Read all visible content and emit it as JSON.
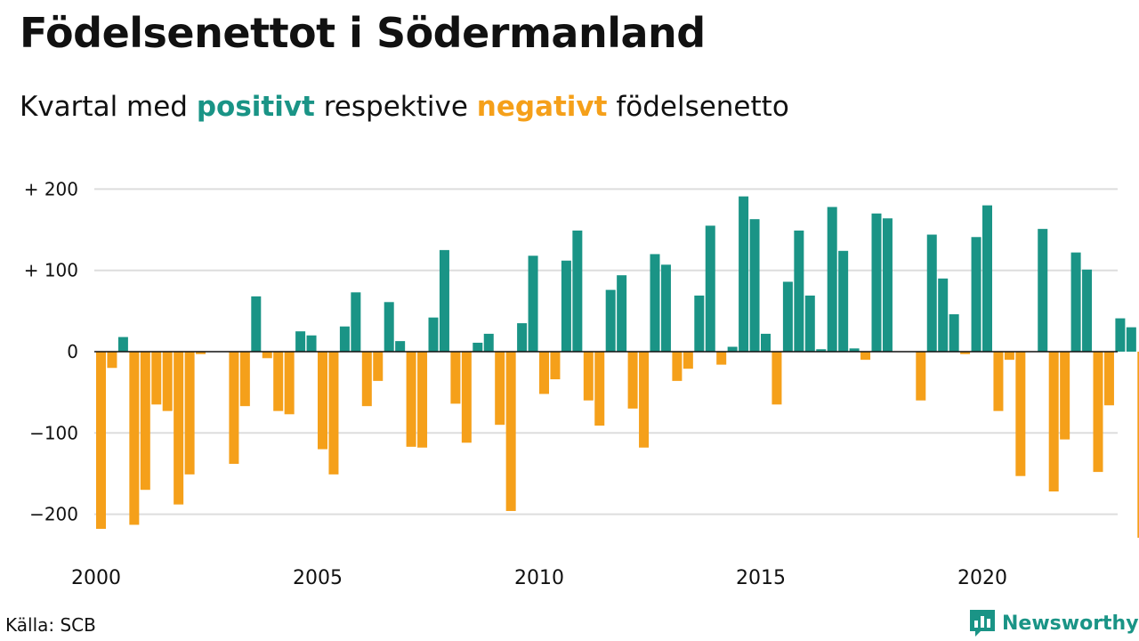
{
  "title": "Födelsenettot i Södermanland",
  "subtitle": {
    "prefix": "Kvartal med ",
    "positive_word": "positivt",
    "middle": " respektive ",
    "negative_word": "negativt",
    "suffix": " födelsenetto"
  },
  "source": "Källa: SCB",
  "logo": {
    "name": "newsworthy-logo-icon",
    "text": "Newsworthy"
  },
  "colors": {
    "positive": "#1a9486",
    "negative": "#f5a01a",
    "grid": "#dddddd",
    "axis": "#111111"
  },
  "chart_data": {
    "type": "bar",
    "title": "Födelsenettot i Södermanland",
    "x_start": "2000 Q1",
    "x_ticks": [
      2000,
      2005,
      2010,
      2015,
      2020
    ],
    "y_ticks": [
      -200,
      -100,
      0,
      100,
      200
    ],
    "y_tick_labels": [
      "−200",
      "−100",
      "0",
      "+ 100",
      "+ 200"
    ],
    "ylim": [
      -230,
      200
    ],
    "grid": true,
    "categories": [
      "2000 Q1",
      "2000 Q2",
      "2000 Q3",
      "2000 Q4",
      "2001 Q1",
      "2001 Q2",
      "2001 Q3",
      "2001 Q4",
      "2002 Q1",
      "2002 Q2",
      "2002 Q3",
      "2002 Q4",
      "2003 Q1",
      "2003 Q2",
      "2003 Q3",
      "2003 Q4",
      "2004 Q1",
      "2004 Q2",
      "2004 Q3",
      "2004 Q4",
      "2005 Q1",
      "2005 Q2",
      "2005 Q3",
      "2005 Q4",
      "2006 Q1",
      "2006 Q2",
      "2006 Q3",
      "2006 Q4",
      "2007 Q1",
      "2007 Q2",
      "2007 Q3",
      "2007 Q4",
      "2008 Q1",
      "2008 Q2",
      "2008 Q3",
      "2008 Q4",
      "2009 Q1",
      "2009 Q2",
      "2009 Q3",
      "2009 Q4",
      "2010 Q1",
      "2010 Q2",
      "2010 Q3",
      "2010 Q4",
      "2011 Q1",
      "2011 Q2",
      "2011 Q3",
      "2011 Q4",
      "2012 Q1",
      "2012 Q2",
      "2012 Q3",
      "2012 Q4",
      "2013 Q1",
      "2013 Q2",
      "2013 Q3",
      "2013 Q4",
      "2014 Q1",
      "2014 Q2",
      "2014 Q3",
      "2014 Q4",
      "2015 Q1",
      "2015 Q2",
      "2015 Q3",
      "2015 Q4",
      "2016 Q1",
      "2016 Q2",
      "2016 Q3",
      "2016 Q4",
      "2017 Q1",
      "2017 Q2",
      "2017 Q3",
      "2017 Q4",
      "2018 Q1",
      "2018 Q2",
      "2018 Q3",
      "2018 Q4",
      "2019 Q1",
      "2019 Q2",
      "2019 Q3",
      "2019 Q4",
      "2020 Q1",
      "2020 Q2",
      "2020 Q3",
      "2020 Q4",
      "2021 Q1",
      "2021 Q2",
      "2021 Q3",
      "2021 Q4",
      "2022 Q1",
      "2022 Q2",
      "2022 Q3",
      "2022 Q4",
      "2023 Q1",
      "2023 Q2",
      "2023 Q3",
      "2023 Q4"
    ],
    "values": [
      -218,
      -20,
      18,
      -213,
      -170,
      -65,
      -73,
      -188,
      -151,
      -3,
      0,
      0,
      -138,
      -67,
      68,
      -8,
      -73,
      -77,
      25,
      20,
      -120,
      -151,
      31,
      73,
      -67,
      -36,
      61,
      13,
      -117,
      -118,
      42,
      125,
      -64,
      -112,
      11,
      22,
      -90,
      -196,
      35,
      118,
      -52,
      -34,
      112,
      149,
      -60,
      -91,
      76,
      94,
      -70,
      -118,
      120,
      107,
      -36,
      -21,
      69,
      155,
      -16,
      6,
      191,
      163,
      22,
      -65,
      86,
      149,
      69,
      3,
      178,
      124,
      4,
      -10,
      170,
      164,
      0,
      0,
      -60,
      144,
      90,
      46,
      -3,
      141,
      180,
      -73,
      -10,
      -153,
      0,
      151,
      -172,
      -108,
      122,
      101,
      -148,
      -66,
      41,
      30,
      -229,
      0
    ]
  }
}
